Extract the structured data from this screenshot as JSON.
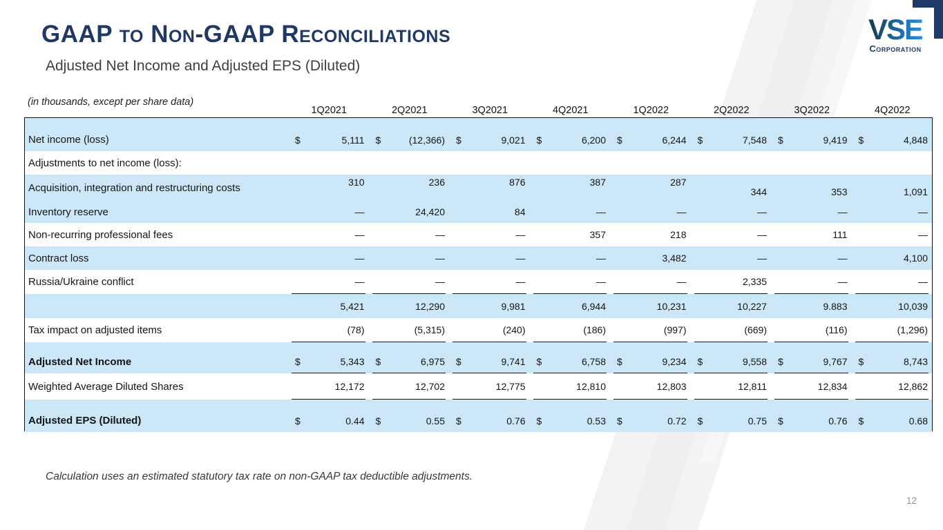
{
  "slide": {
    "title": "GAAP to Non-GAAP Reconciliations",
    "subtitle": "Adjusted Net Income and Adjusted EPS (Diluted)",
    "units_note": "(in thousands, except per share data)",
    "footnote": "Calculation uses an estimated statutory tax rate on non-GAAP tax deductible adjustments.",
    "page_number": "12"
  },
  "logo": {
    "name": "VSE",
    "subtext": "Corporation"
  },
  "colors": {
    "accent_navy": "#1f3864",
    "row_blue": "#cbe7f8",
    "table_bottom_border": "#24415f"
  },
  "table": {
    "columns": [
      "1Q2021",
      "2Q2021",
      "3Q2021",
      "4Q2021",
      "1Q2022",
      "2Q2022",
      "3Q2022",
      "4Q2022"
    ],
    "rows": [
      {
        "label": "Net income (loss)",
        "dollar": true,
        "bold": false,
        "bg": "blue",
        "underline": false,
        "split": false,
        "values": [
          "5,111",
          "(12,366)",
          "9,021",
          "6,200",
          "6,244",
          "7,548",
          "9,419",
          "4,848"
        ]
      },
      {
        "label": "Adjustments to net income (loss):",
        "dollar": false,
        "bold": false,
        "bg": "white",
        "underline": false,
        "split": false,
        "values": [
          "",
          "",
          "",
          "",
          "",
          "",
          "",
          ""
        ]
      },
      {
        "label": "Acquisition, integration and restructuring costs",
        "dollar": false,
        "bold": false,
        "bg": "blue",
        "underline": false,
        "split": true,
        "values": [
          "310",
          "236",
          "876",
          "387",
          "287",
          "344",
          "353",
          "1,091"
        ]
      },
      {
        "label": "Inventory reserve",
        "dollar": false,
        "bold": false,
        "bg": "blue",
        "underline": false,
        "split": false,
        "values": [
          "—",
          "24,420",
          "84",
          "—",
          "—",
          "—",
          "—",
          "—"
        ]
      },
      {
        "label": "Non-recurring professional fees",
        "dollar": false,
        "bold": false,
        "bg": "white",
        "underline": false,
        "split": false,
        "values": [
          "—",
          "—",
          "—",
          "357",
          "218",
          "—",
          "111",
          "—"
        ]
      },
      {
        "label": "Contract loss",
        "dollar": false,
        "bold": false,
        "bg": "blue",
        "underline": false,
        "split": false,
        "values": [
          "—",
          "—",
          "—",
          "—",
          "3,482",
          "—",
          "—",
          "4,100"
        ]
      },
      {
        "label": "Russia/Ukraine conflict",
        "dollar": false,
        "bold": false,
        "bg": "white",
        "underline": true,
        "split": false,
        "values": [
          "—",
          "—",
          "—",
          "—",
          "—",
          "2,335",
          "—",
          "—"
        ]
      },
      {
        "label": "",
        "dollar": false,
        "bold": false,
        "bg": "blue",
        "underline": false,
        "split": false,
        "values": [
          "5,421",
          "12,290",
          "9,981",
          "6,944",
          "10,231",
          "10,227",
          "9.883",
          "10,039"
        ]
      },
      {
        "label": "Tax impact on adjusted items",
        "dollar": false,
        "bold": false,
        "bg": "white",
        "underline": true,
        "split": false,
        "values": [
          "(78)",
          "(5,315)",
          "(240)",
          "(186)",
          "(997)",
          "(669)",
          "(116)",
          "(1,296)"
        ]
      },
      {
        "label": "Adjusted Net Income",
        "dollar": true,
        "bold": true,
        "bg": "blue",
        "underline": true,
        "split": false,
        "values": [
          "5,343",
          "6,975",
          "9,741",
          "6,758",
          "9,234",
          "9,558",
          "9,767",
          "8,743"
        ]
      },
      {
        "label": "Weighted Average Diluted Shares",
        "dollar": false,
        "bold": false,
        "bg": "white",
        "underline": true,
        "split": false,
        "values": [
          "12,172",
          "12,702",
          "12,775",
          "12,810",
          "12,803",
          "12,811",
          "12,834",
          "12,862"
        ]
      },
      {
        "label": "Adjusted EPS (Diluted)",
        "dollar": true,
        "bold": true,
        "bg": "blue",
        "underline": false,
        "split": false,
        "values": [
          "0.44",
          "0.55",
          "0.76",
          "0.53",
          "0.72",
          "0.75",
          "0.76",
          "0.68"
        ]
      }
    ]
  }
}
